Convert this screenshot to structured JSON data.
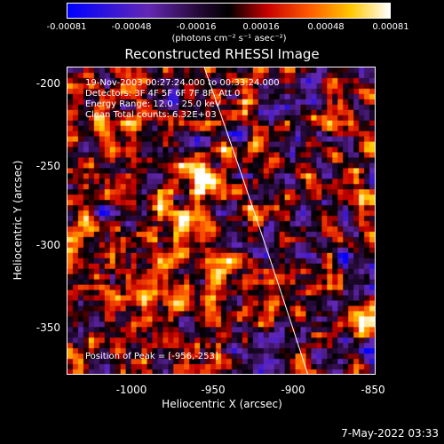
{
  "colorbar": {
    "ticks": [
      "-0.00081",
      "-0.00048",
      "-0.00016",
      "0.00016",
      "0.00048",
      "0.00081"
    ],
    "units": "(photons cm⁻² s⁻¹ asec⁻²)"
  },
  "title": "Reconstructed RHESSI Image",
  "info": {
    "time_range": "19-Nov-2003 00:27:24.000 to 00:33:24.000",
    "detectors": "Detectors: 3F 4F 5F 6F 7F 8F, Att 0",
    "energy": "Energy Range: 12.0 - 25.0 keV",
    "clean": "Clean     Total counts: 6.32E+03",
    "peak": "Position of Peak = [-956,-253]"
  },
  "axes": {
    "xlabel": "Heliocentric X (arcsec)",
    "ylabel": "Heliocentric Y (arcsec)",
    "xticks": [
      "-1000",
      "-950",
      "-900",
      "-850"
    ],
    "yticks": [
      "-200",
      "-250",
      "-300",
      "-350"
    ]
  },
  "timestamp": "7-May-2022 03:33"
}
